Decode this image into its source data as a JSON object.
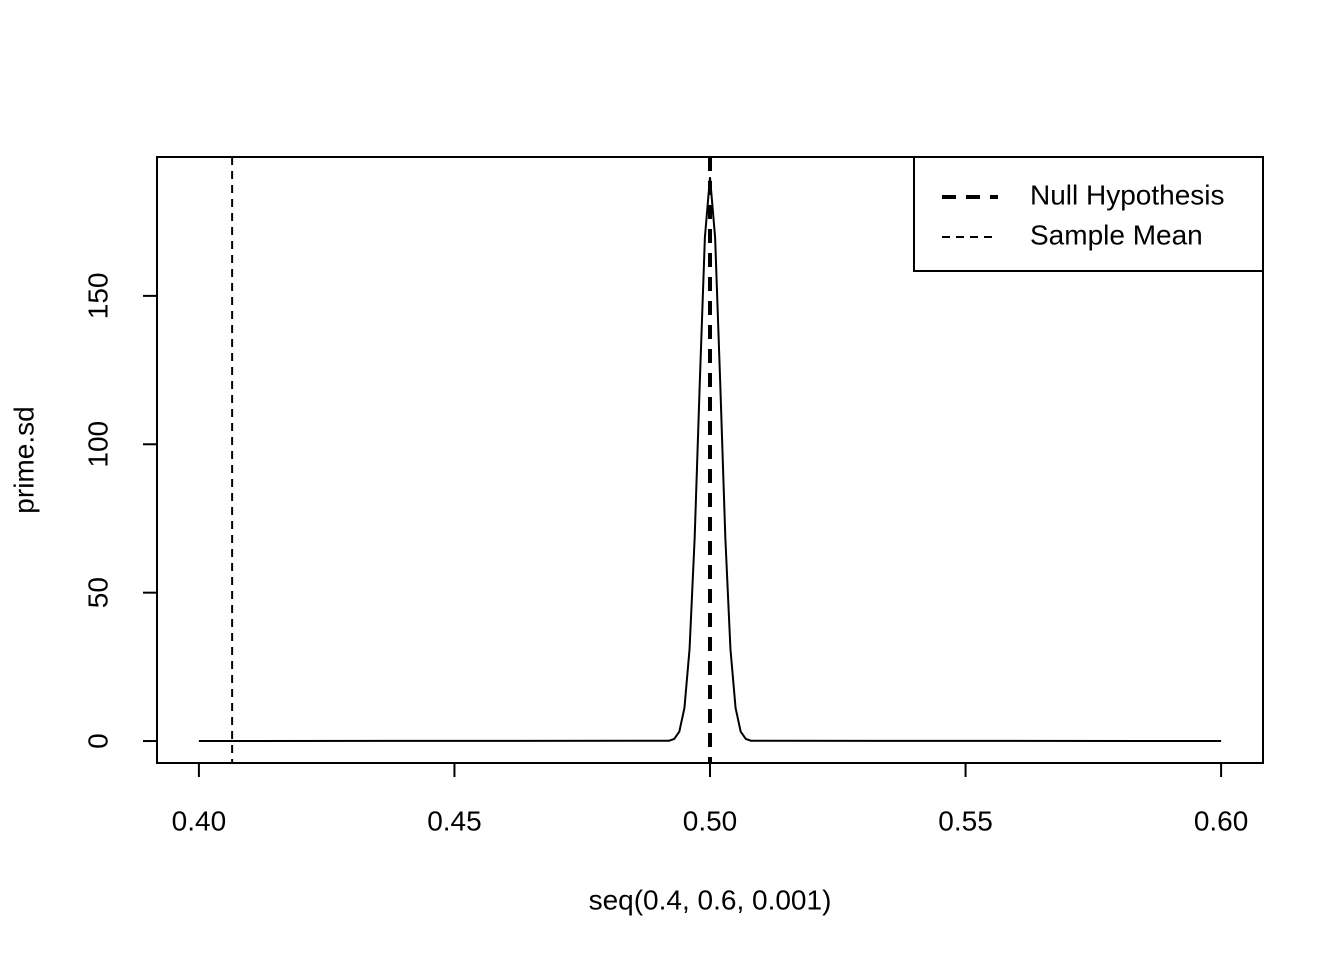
{
  "chart_data": {
    "type": "line",
    "x_label": "seq(0.4, 0.6, 0.001)",
    "y_label": "prime.sd",
    "xlim": [
      0.3918,
      0.6082
    ],
    "ylim": [
      -7.4,
      196.8
    ],
    "xticks": [
      {
        "value": 0.4,
        "label": "0.40"
      },
      {
        "value": 0.45,
        "label": "0.45"
      },
      {
        "value": 0.5,
        "label": "0.50"
      },
      {
        "value": 0.55,
        "label": "0.55"
      },
      {
        "value": 0.6,
        "label": "0.60"
      }
    ],
    "yticks": [
      0,
      50,
      100,
      150
    ],
    "series": [
      {
        "color": "#000000",
        "x": [
          0.4,
          0.492,
          0.493,
          0.494,
          0.495,
          0.496,
          0.497,
          0.498,
          0.499,
          0.5,
          0.501,
          0.502,
          0.503,
          0.504,
          0.505,
          0.506,
          0.507,
          0.508,
          0.6
        ],
        "values": [
          0,
          0.1,
          0.7,
          3.2,
          11.2,
          31,
          68.5,
          120.7,
          169.7,
          190,
          169.7,
          120.7,
          68.5,
          31,
          11.2,
          3.2,
          0.7,
          0.1,
          0
        ]
      }
    ],
    "vlines": [
      {
        "name": "Null Hypothesis",
        "x": 0.5,
        "color": "#000000",
        "width": 4,
        "dash": "14 10"
      },
      {
        "name": "Sample Mean",
        "x": 0.4065,
        "color": "#000000",
        "width": 2,
        "dash": "8 6"
      }
    ],
    "legend": "top-right"
  }
}
